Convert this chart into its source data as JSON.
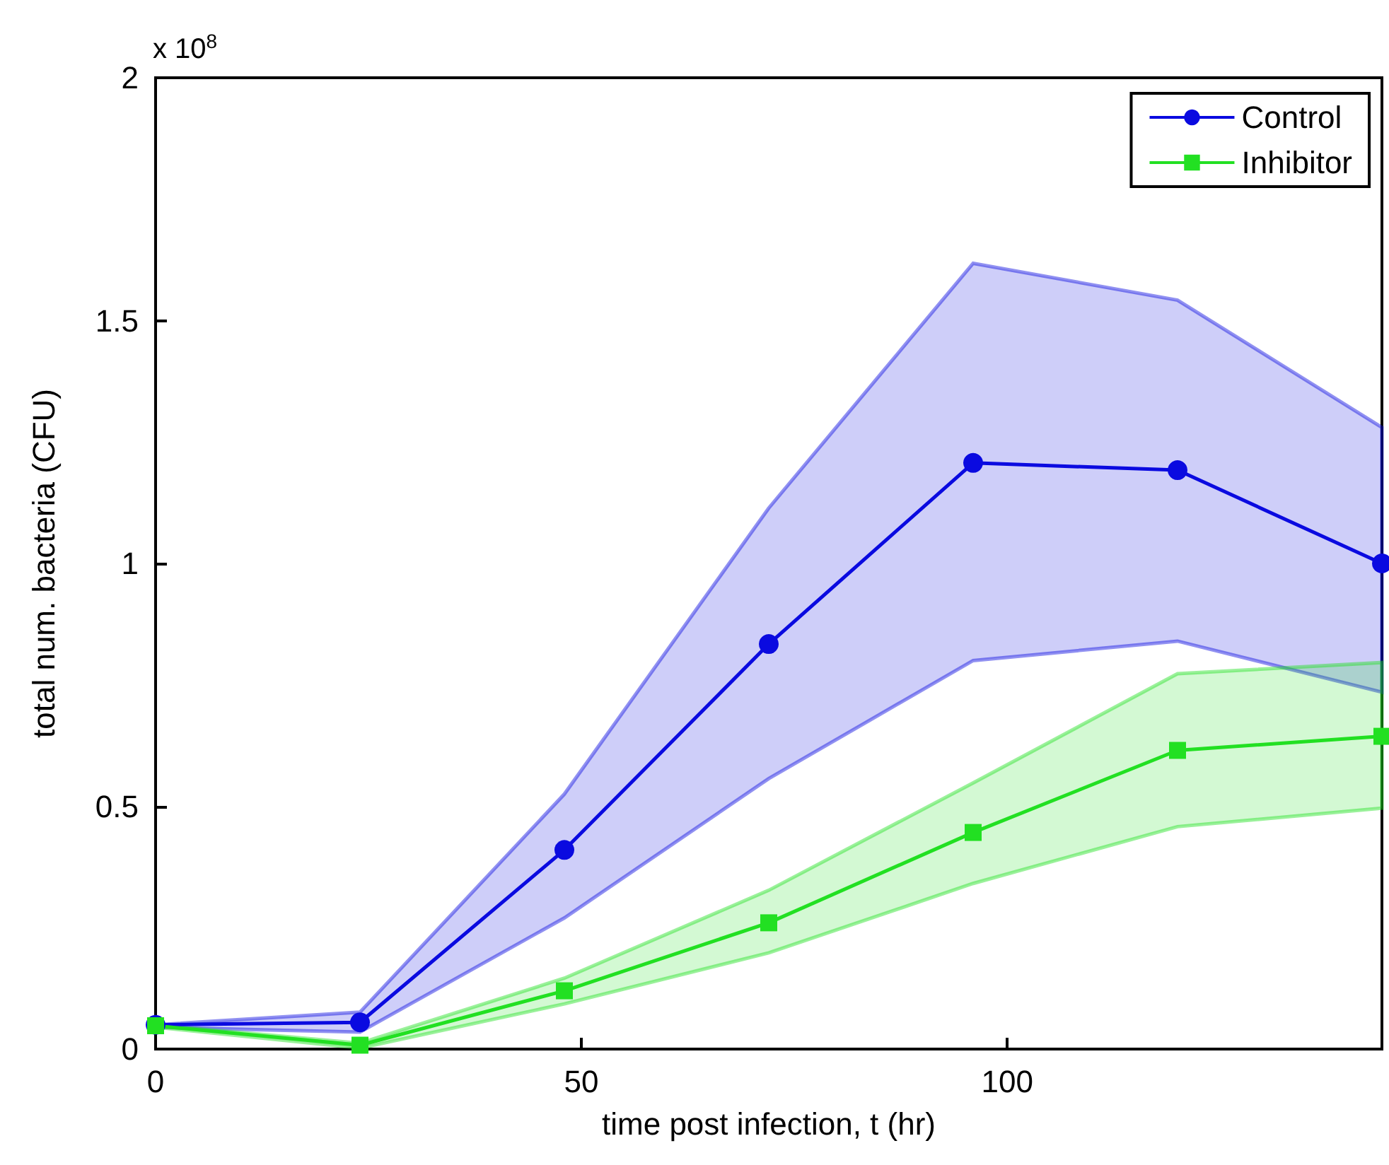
{
  "chart_data": {
    "type": "line",
    "xlabel": "time post infection, t (hr)",
    "ylabel": "total num. bacteria (CFU)",
    "annotations": [
      "x 10$^{8}$"
    ],
    "x": [
      0,
      24,
      48,
      72,
      96,
      120,
      144
    ],
    "series": [
      {
        "name": "Control",
        "color": "#0a0ae0",
        "marker": "circle",
        "values": [
          0.05,
          0.055,
          0.41,
          0.834,
          1.207,
          1.192,
          1.0
        ],
        "lower": [
          0.045,
          0.035,
          0.27,
          0.557,
          0.8,
          0.84,
          0.735
        ],
        "upper": [
          0.05,
          0.076,
          0.525,
          1.114,
          1.618,
          1.542,
          1.28
        ]
      },
      {
        "name": "Inhibitor",
        "color": "#22e022",
        "marker": "square",
        "values": [
          0.048,
          0.008,
          0.12,
          0.26,
          0.446,
          0.615,
          0.644
        ],
        "lower": [
          0.045,
          0.002,
          0.093,
          0.198,
          0.341,
          0.458,
          0.496
        ],
        "upper": [
          0.05,
          0.012,
          0.146,
          0.327,
          0.548,
          0.773,
          0.796
        ]
      }
    ],
    "xlim": [
      0,
      144
    ],
    "xticks": [
      0,
      50,
      100
    ],
    "ylim": [
      0,
      2
    ],
    "yticks": [
      0,
      0.5,
      1,
      1.5,
      2
    ],
    "grid": false,
    "legend": "top right",
    "line_style": "solid"
  }
}
